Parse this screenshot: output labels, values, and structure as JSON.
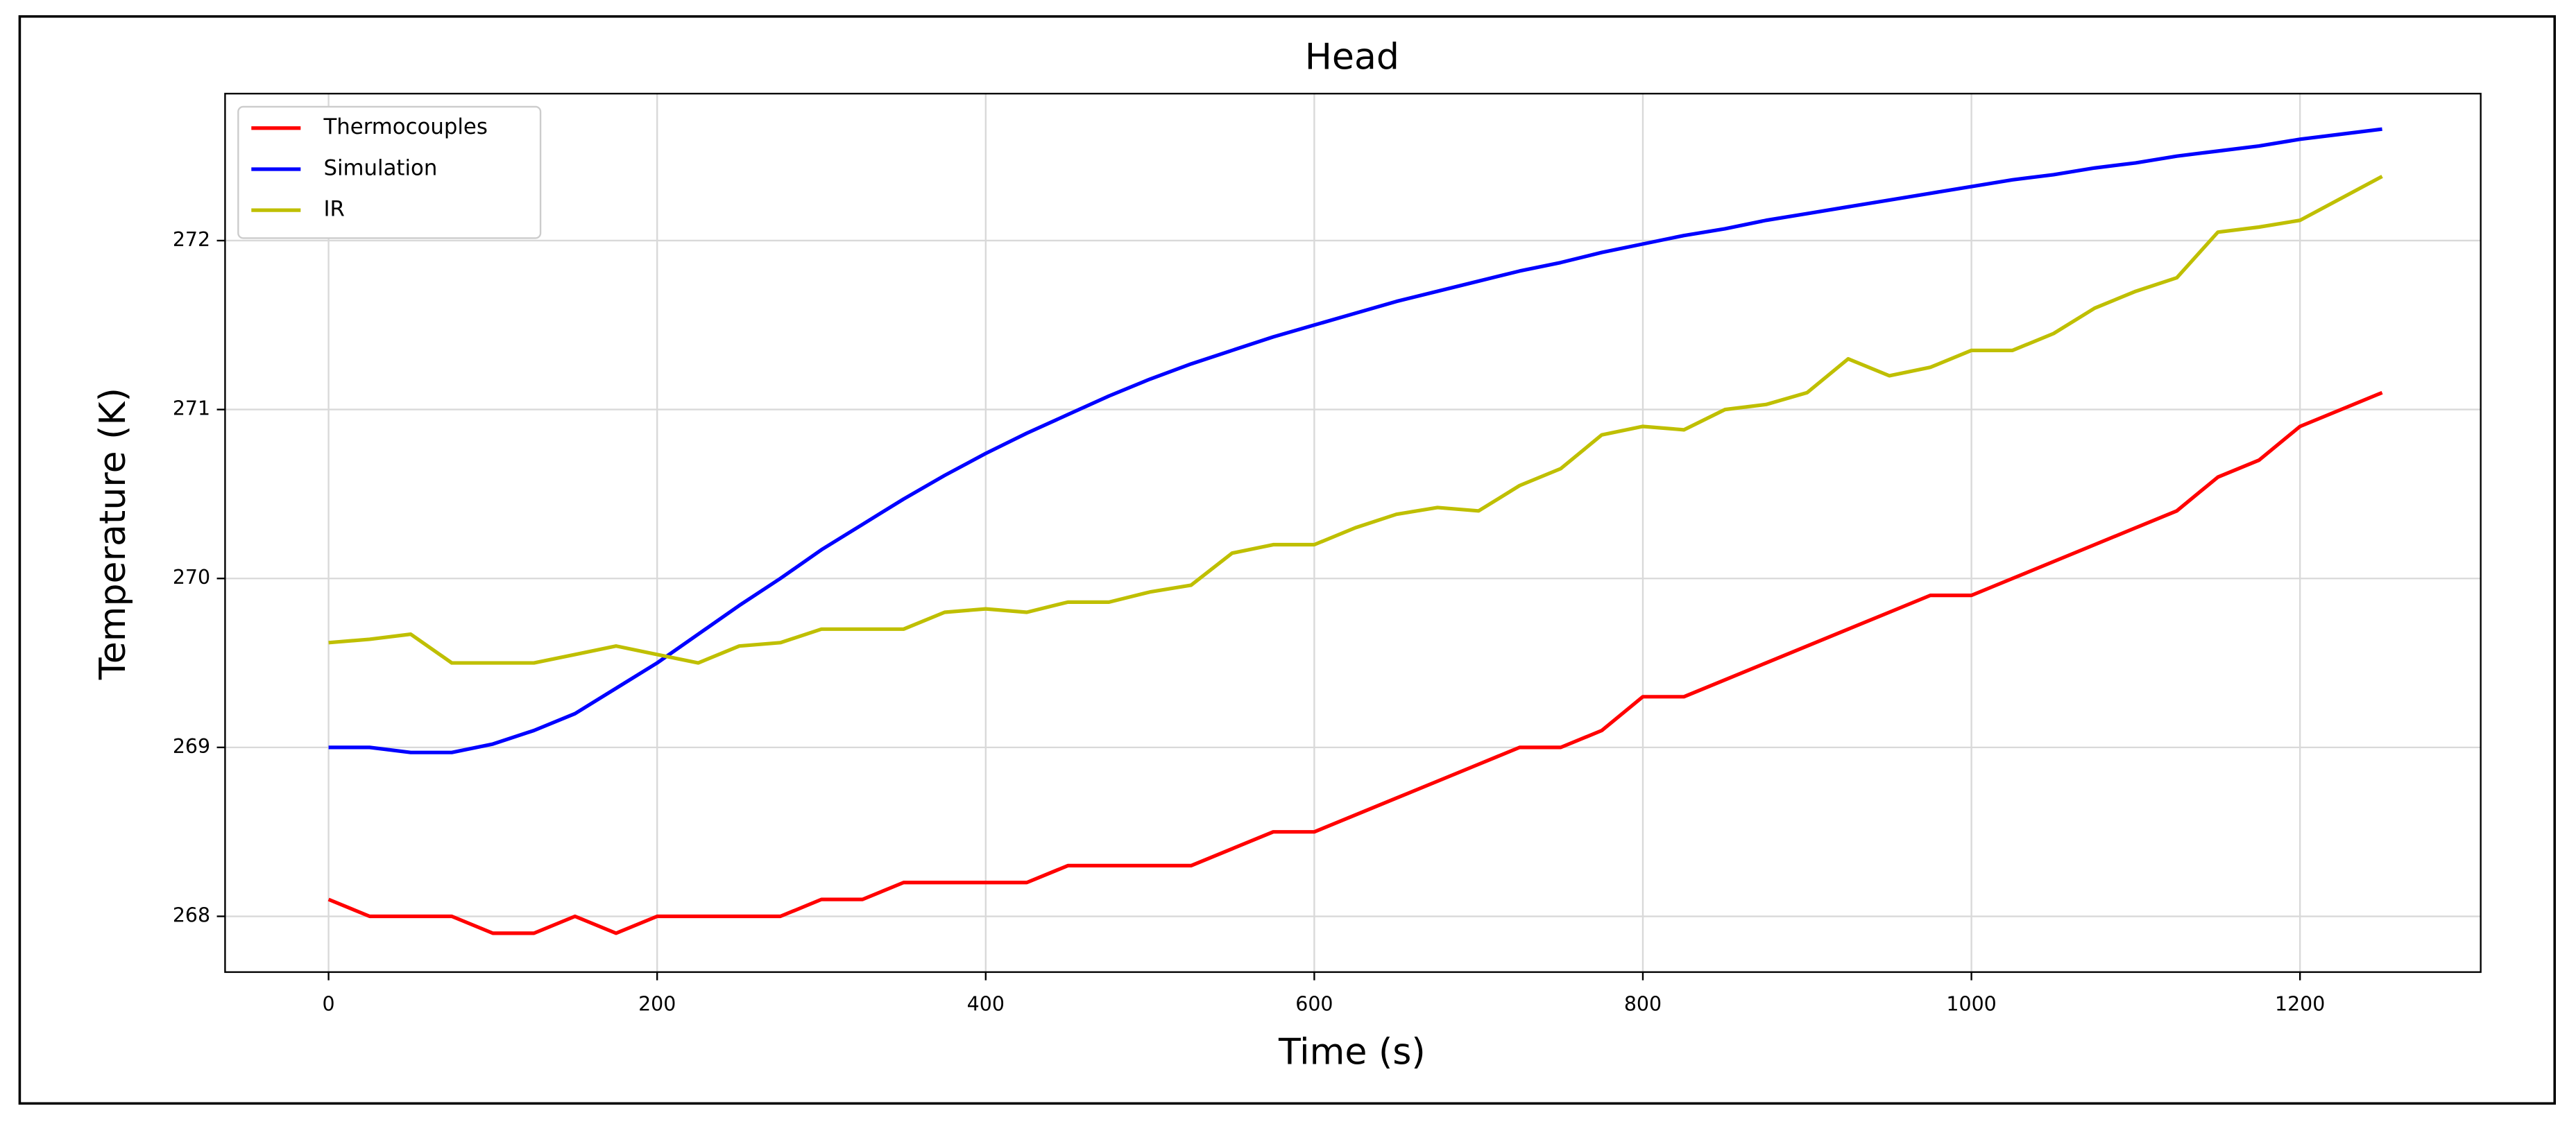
{
  "chart_data": {
    "type": "line",
    "title": "Head",
    "xlabel": "Time (s)",
    "ylabel": "Temperature (K)",
    "grid": true,
    "legend": "upper left",
    "xlim": [
      -63,
      1310
    ],
    "ylim": [
      267.67,
      272.87
    ],
    "xticks": [
      0,
      200,
      400,
      600,
      800,
      1000,
      1200
    ],
    "yticks": [
      268,
      269,
      270,
      271,
      272
    ],
    "x": [
      0,
      25,
      50,
      75,
      100,
      125,
      150,
      175,
      200,
      225,
      250,
      275,
      300,
      325,
      350,
      375,
      400,
      425,
      450,
      475,
      500,
      525,
      550,
      575,
      600,
      625,
      650,
      675,
      700,
      725,
      750,
      775,
      800,
      825,
      850,
      875,
      900,
      925,
      950,
      975,
      1000,
      1025,
      1050,
      1075,
      1100,
      1125,
      1150,
      1175,
      1200,
      1225,
      1250
    ],
    "series": [
      {
        "name": "Thermocouples",
        "color": "#ff0000",
        "values": [
          268.1,
          268.0,
          268.0,
          268.0,
          267.9,
          267.9,
          268.0,
          267.9,
          268.0,
          268.0,
          268.0,
          268.0,
          268.1,
          268.1,
          268.2,
          268.2,
          268.2,
          268.2,
          268.3,
          268.3,
          268.3,
          268.3,
          268.4,
          268.5,
          268.5,
          268.6,
          268.7,
          268.8,
          268.9,
          269.0,
          269.0,
          269.1,
          269.3,
          269.3,
          269.4,
          269.5,
          269.6,
          269.7,
          269.8,
          269.9,
          269.9,
          270.0,
          270.1,
          270.2,
          270.3,
          270.4,
          270.6,
          270.7,
          270.9,
          271.0,
          271.1
        ]
      },
      {
        "name": "Simulation",
        "color": "#0000ff",
        "values": [
          269.0,
          269.0,
          268.97,
          268.97,
          269.02,
          269.1,
          269.2,
          269.35,
          269.5,
          269.67,
          269.84,
          270.0,
          270.17,
          270.32,
          270.47,
          270.61,
          270.74,
          270.86,
          270.97,
          271.08,
          271.18,
          271.27,
          271.35,
          271.43,
          271.5,
          271.57,
          271.64,
          271.7,
          271.76,
          271.82,
          271.87,
          271.93,
          271.98,
          272.03,
          272.07,
          272.12,
          272.16,
          272.2,
          272.24,
          272.28,
          272.32,
          272.36,
          272.39,
          272.43,
          272.46,
          272.5,
          272.53,
          272.56,
          272.6,
          272.63,
          272.66
        ]
      },
      {
        "name": "IR",
        "color": "#bfbf00",
        "values": [
          269.62,
          269.64,
          269.67,
          269.5,
          269.5,
          269.5,
          269.55,
          269.6,
          269.55,
          269.5,
          269.6,
          269.62,
          269.7,
          269.7,
          269.7,
          269.8,
          269.82,
          269.8,
          269.86,
          269.86,
          269.92,
          269.96,
          270.15,
          270.2,
          270.2,
          270.3,
          270.38,
          270.42,
          270.4,
          270.55,
          270.65,
          270.85,
          270.9,
          270.88,
          271.0,
          271.03,
          271.1,
          271.3,
          271.2,
          271.25,
          271.35,
          271.35,
          271.45,
          271.6,
          271.7,
          271.78,
          272.05,
          272.08,
          272.12,
          272.25,
          272.38
        ]
      }
    ]
  }
}
